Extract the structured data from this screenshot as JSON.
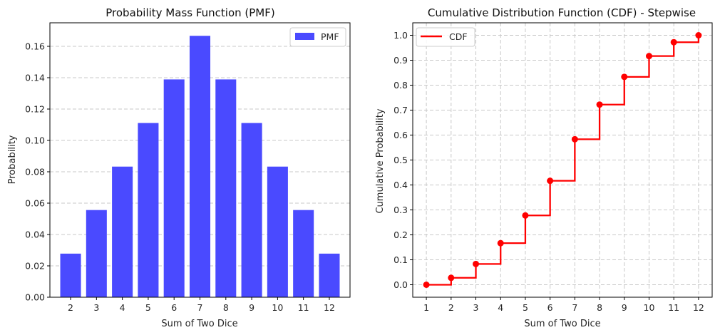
{
  "chart_data": [
    {
      "type": "bar",
      "title": "Probability Mass Function (PMF)",
      "xlabel": "Sum of Two Dice",
      "ylabel": "Probability",
      "categories": [
        2,
        3,
        4,
        5,
        6,
        7,
        8,
        9,
        10,
        11,
        12
      ],
      "series": [
        {
          "name": "PMF",
          "color": "#4a4aff",
          "values": [
            0.0278,
            0.0556,
            0.0833,
            0.1111,
            0.1389,
            0.1667,
            0.1389,
            0.1111,
            0.0833,
            0.0556,
            0.0278
          ]
        }
      ],
      "ylim": [
        0,
        0.175
      ],
      "yticks": [
        0.0,
        0.02,
        0.04,
        0.06,
        0.08,
        0.1,
        0.12,
        0.14,
        0.16
      ],
      "ytick_labels": [
        "0.00",
        "0.02",
        "0.04",
        "0.06",
        "0.08",
        "0.10",
        "0.12",
        "0.14",
        "0.16"
      ],
      "xticks": [
        2,
        3,
        4,
        5,
        6,
        7,
        8,
        9,
        10,
        11,
        12
      ],
      "grid": "y-dashed",
      "legend": "upper-right"
    },
    {
      "type": "line",
      "style": "step-post-with-markers",
      "title": "Cumulative Distribution Function (CDF) - Stepwise",
      "xlabel": "Sum of Two Dice",
      "ylabel": "Cumulative Probability",
      "x": [
        1,
        2,
        3,
        4,
        5,
        6,
        7,
        8,
        9,
        10,
        11,
        12
      ],
      "series": [
        {
          "name": "CDF",
          "color": "#ff0000",
          "values": [
            0.0,
            0.0278,
            0.0833,
            0.1667,
            0.2778,
            0.4167,
            0.5833,
            0.7222,
            0.8333,
            0.9167,
            0.9722,
            1.0
          ]
        }
      ],
      "xlim": [
        0.45,
        12.55
      ],
      "ylim": [
        -0.05,
        1.05
      ],
      "yticks": [
        0.0,
        0.1,
        0.2,
        0.3,
        0.4,
        0.5,
        0.6,
        0.7,
        0.8,
        0.9,
        1.0
      ],
      "ytick_labels": [
        "0.0",
        "0.1",
        "0.2",
        "0.3",
        "0.4",
        "0.5",
        "0.6",
        "0.7",
        "0.8",
        "0.9",
        "1.0"
      ],
      "xticks": [
        1,
        2,
        3,
        4,
        5,
        6,
        7,
        8,
        9,
        10,
        11,
        12
      ],
      "grid": "both-dashed",
      "legend": "upper-left"
    }
  ]
}
